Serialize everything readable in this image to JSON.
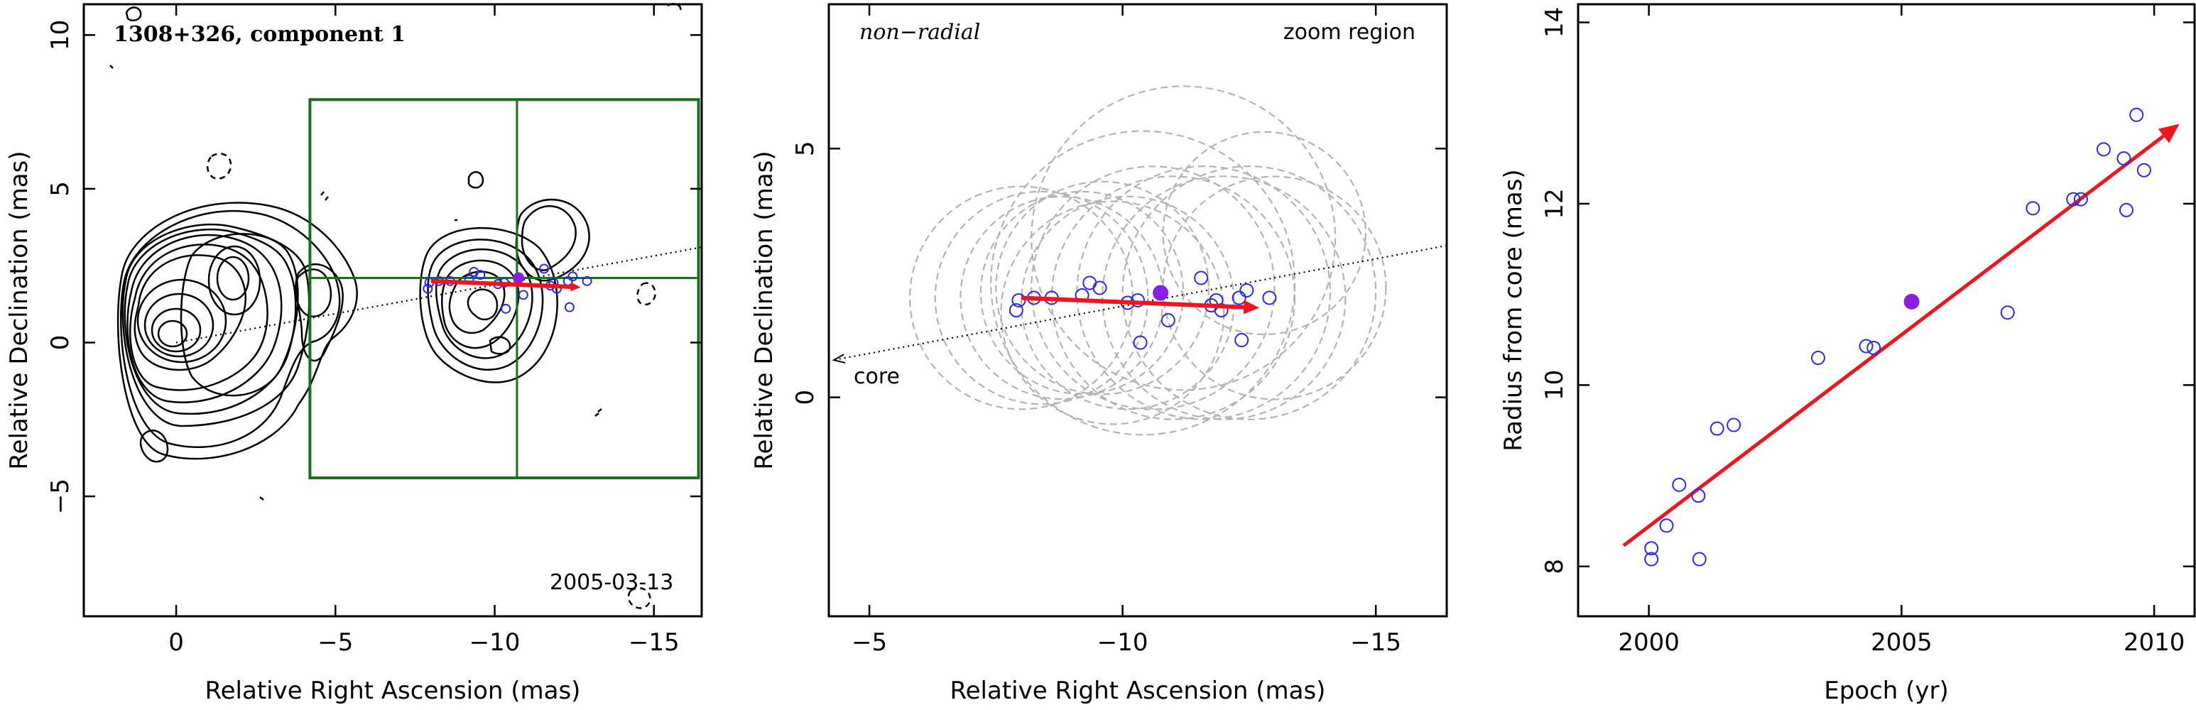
{
  "colors": {
    "observation": "#2a2aee",
    "reference_epoch": "#8a1ee6",
    "motion_vector": "#f0141e",
    "zoom_box": "#1f6b1f",
    "error_circle": "#b3b3b3"
  },
  "chart_data": [
    {
      "type": "scatter",
      "panel": "image",
      "title": "1308+326, component 1",
      "xlabel": "Relative Right Ascension (mas)",
      "ylabel": "Relative Declination (mas)",
      "xlim": [
        2.9,
        -16.5
      ],
      "ylim": [
        -8.9,
        11
      ],
      "x_reversed": true,
      "xticks": [
        0,
        -5,
        -10,
        -15
      ],
      "xtick_labels": [
        "0",
        "−5",
        "−10",
        "−15"
      ],
      "yticks": [
        -5,
        0,
        5,
        10
      ],
      "ytick_labels": [
        "−5",
        "0",
        "5",
        "10"
      ],
      "epoch_label": "2005-03-13",
      "zoom_box": {
        "x": [
          -4.2,
          -16.4
        ],
        "y": [
          -4.4,
          7.9
        ],
        "crosshair": [
          -10.7,
          2.1
        ]
      },
      "motion_vector": {
        "from": [
          -8.0,
          2.0
        ],
        "to": [
          -12.7,
          1.8
        ]
      },
      "trajectory_line": {
        "from": [
          0,
          0
        ],
        "to": [
          -16.5,
          3.1
        ]
      },
      "observations": [
        {
          "x": -7.95,
          "y": 1.95
        },
        {
          "x": -7.9,
          "y": 1.75
        },
        {
          "x": -8.25,
          "y": 2.0
        },
        {
          "x": -8.6,
          "y": 2.0
        },
        {
          "x": -9.2,
          "y": 2.05
        },
        {
          "x": -9.35,
          "y": 2.3
        },
        {
          "x": -9.55,
          "y": 2.2
        },
        {
          "x": -10.1,
          "y": 1.9
        },
        {
          "x": -10.3,
          "y": 1.95
        },
        {
          "x": -10.35,
          "y": 1.1
        },
        {
          "x": -10.9,
          "y": 1.55
        },
        {
          "x": -11.55,
          "y": 2.4
        },
        {
          "x": -11.75,
          "y": 1.85
        },
        {
          "x": -11.85,
          "y": 1.95
        },
        {
          "x": -11.95,
          "y": 1.75
        },
        {
          "x": -12.3,
          "y": 2.0
        },
        {
          "x": -12.35,
          "y": 1.15
        },
        {
          "x": -12.45,
          "y": 2.15
        },
        {
          "x": -12.9,
          "y": 2.0
        }
      ],
      "reference_point": {
        "x": -10.75,
        "y": 2.1
      }
    },
    {
      "type": "scatter",
      "panel": "zoom",
      "xlabel": "Relative Right Ascension (mas)",
      "ylabel": "Relative Declination (mas)",
      "annotations": [
        "non−radial",
        "zoom region",
        "core"
      ],
      "xlim": [
        -4.2,
        -16.4
      ],
      "ylim": [
        -4.4,
        7.9
      ],
      "x_reversed": true,
      "xticks": [
        -5,
        -10,
        -15
      ],
      "xtick_labels": [
        "−5",
        "−10",
        "−15"
      ],
      "yticks": [
        0,
        5
      ],
      "ytick_labels": [
        "0",
        "5"
      ],
      "motion_vector": {
        "from": [
          -8.0,
          2.0
        ],
        "to": [
          -12.7,
          1.8
        ]
      },
      "trajectory_line": {
        "from": [
          -16.4,
          3.05
        ],
        "to": [
          -4.3,
          0.75
        ]
      },
      "observations": [
        {
          "x": -7.95,
          "y": 1.95
        },
        {
          "x": -7.9,
          "y": 1.75
        },
        {
          "x": -8.25,
          "y": 2.0
        },
        {
          "x": -8.6,
          "y": 2.0
        },
        {
          "x": -9.2,
          "y": 2.05
        },
        {
          "x": -9.35,
          "y": 2.3
        },
        {
          "x": -9.55,
          "y": 2.2
        },
        {
          "x": -10.1,
          "y": 1.9
        },
        {
          "x": -10.3,
          "y": 1.95
        },
        {
          "x": -10.35,
          "y": 1.1
        },
        {
          "x": -10.9,
          "y": 1.55
        },
        {
          "x": -11.55,
          "y": 2.4
        },
        {
          "x": -11.75,
          "y": 1.85
        },
        {
          "x": -11.85,
          "y": 1.95
        },
        {
          "x": -11.95,
          "y": 1.75
        },
        {
          "x": -12.3,
          "y": 2.0
        },
        {
          "x": -12.35,
          "y": 1.15
        },
        {
          "x": -12.45,
          "y": 2.15
        },
        {
          "x": -12.9,
          "y": 2.0
        }
      ],
      "reference_point": {
        "x": -10.75,
        "y": 2.1
      },
      "error_circles": [
        {
          "x": -8.0,
          "y": 2.0,
          "r": 2.2
        },
        {
          "x": -8.4,
          "y": 2.0,
          "r": 2.1
        },
        {
          "x": -8.8,
          "y": 2.0,
          "r": 2.0
        },
        {
          "x": -9.2,
          "y": 2.1,
          "r": 2.0
        },
        {
          "x": -9.6,
          "y": 2.2,
          "r": 2.1
        },
        {
          "x": -10.1,
          "y": 1.9,
          "r": 2.1
        },
        {
          "x": -10.4,
          "y": 2.3,
          "r": 3.0
        },
        {
          "x": -10.6,
          "y": 2.2,
          "r": 2.4
        },
        {
          "x": -11.0,
          "y": 2.0,
          "r": 2.4
        },
        {
          "x": -11.6,
          "y": 2.1,
          "r": 2.5
        },
        {
          "x": -12.0,
          "y": 2.0,
          "r": 2.4
        },
        {
          "x": -12.5,
          "y": 2.1,
          "r": 2.5
        },
        {
          "x": -13.0,
          "y": 2.2,
          "r": 2.2
        },
        {
          "x": -11.2,
          "y": 3.2,
          "r": 3.0
        },
        {
          "x": -12.8,
          "y": 3.3,
          "r": 2.0
        },
        {
          "x": -9.8,
          "y": 1.7,
          "r": 2.2
        }
      ]
    },
    {
      "type": "scatter",
      "panel": "radius-vs-time",
      "xlabel": "Epoch (yr)",
      "ylabel": "Radius from core (mas)",
      "xlim": [
        1998.6,
        2010.8
      ],
      "ylim": [
        7.45,
        14.2
      ],
      "xticks": [
        2000,
        2005,
        2010
      ],
      "xtick_labels": [
        "2000",
        "2005",
        "2010"
      ],
      "yticks": [
        8,
        10,
        12,
        14
      ],
      "ytick_labels": [
        "8",
        "10",
        "12",
        "14"
      ],
      "fit_line": {
        "from": [
          1999.5,
          8.23
        ],
        "to": [
          2010.5,
          12.88
        ]
      },
      "observations": [
        {
          "x": 2000.05,
          "y": 8.2
        },
        {
          "x": 2000.05,
          "y": 8.08
        },
        {
          "x": 2000.35,
          "y": 8.45
        },
        {
          "x": 2000.6,
          "y": 8.9
        },
        {
          "x": 2000.98,
          "y": 8.78
        },
        {
          "x": 2001.0,
          "y": 8.08
        },
        {
          "x": 2001.35,
          "y": 9.52
        },
        {
          "x": 2001.68,
          "y": 9.56
        },
        {
          "x": 2003.35,
          "y": 10.3
        },
        {
          "x": 2004.3,
          "y": 10.43
        },
        {
          "x": 2004.45,
          "y": 10.41
        },
        {
          "x": 2007.1,
          "y": 10.8
        },
        {
          "x": 2007.6,
          "y": 11.95
        },
        {
          "x": 2008.4,
          "y": 12.05
        },
        {
          "x": 2008.55,
          "y": 12.05
        },
        {
          "x": 2009.0,
          "y": 12.6
        },
        {
          "x": 2009.4,
          "y": 12.5
        },
        {
          "x": 2009.45,
          "y": 11.93
        },
        {
          "x": 2009.65,
          "y": 12.98
        },
        {
          "x": 2009.8,
          "y": 12.37
        }
      ],
      "reference_point": {
        "x": 2005.2,
        "y": 10.92
      }
    }
  ]
}
